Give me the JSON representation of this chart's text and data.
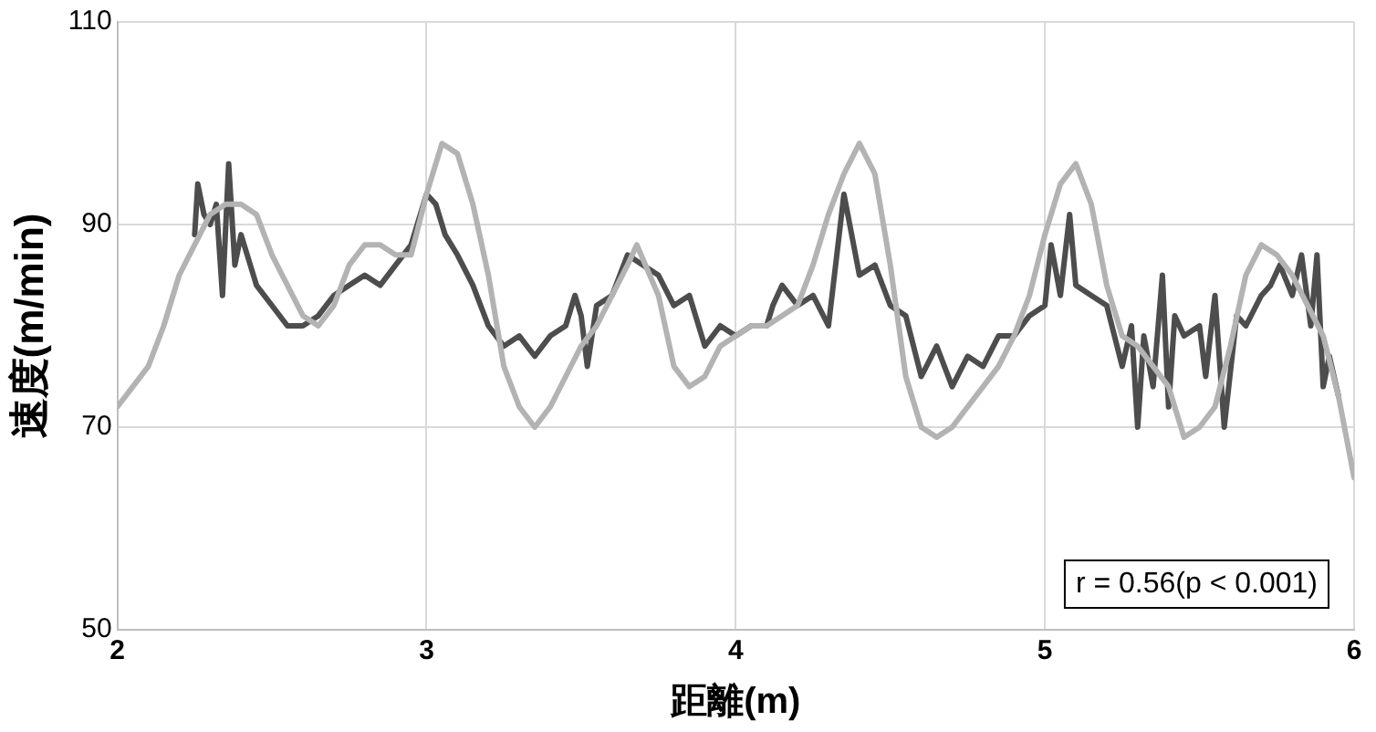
{
  "chart_data": {
    "type": "line",
    "xlabel": "距離(m)",
    "ylabel": "速度(m/min)",
    "xlim": [
      2,
      6
    ],
    "xticks": [
      2,
      3,
      4,
      5,
      6
    ],
    "ylim": [
      50,
      110
    ],
    "yticks": [
      50,
      70,
      90,
      110
    ],
    "grid": true,
    "marker": "none",
    "line_style": "solid",
    "annotations": [
      "r = 0.56(p < 0.001)"
    ],
    "series": [
      {
        "color": "#b3b3b3",
        "x": [
          2.0,
          2.05,
          2.1,
          2.15,
          2.2,
          2.25,
          2.3,
          2.35,
          2.4,
          2.45,
          2.5,
          2.55,
          2.6,
          2.65,
          2.7,
          2.75,
          2.8,
          2.85,
          2.9,
          2.95,
          3.0,
          3.05,
          3.1,
          3.15,
          3.2,
          3.25,
          3.3,
          3.35,
          3.4,
          3.45,
          3.5,
          3.55,
          3.6,
          3.65,
          3.68,
          3.75,
          3.8,
          3.85,
          3.9,
          3.95,
          4.0,
          4.05,
          4.1,
          4.15,
          4.2,
          4.25,
          4.3,
          4.35,
          4.4,
          4.45,
          4.5,
          4.55,
          4.6,
          4.65,
          4.7,
          4.75,
          4.8,
          4.85,
          4.9,
          4.95,
          5.0,
          5.05,
          5.1,
          5.15,
          5.2,
          5.25,
          5.3,
          5.35,
          5.4,
          5.45,
          5.5,
          5.55,
          5.6,
          5.65,
          5.7,
          5.75,
          5.8,
          5.85,
          5.9,
          5.95,
          6.0
        ],
        "values": [
          72,
          74,
          76,
          80,
          85,
          88,
          91,
          92,
          92,
          91,
          87,
          84,
          81,
          80,
          82,
          86,
          88,
          88,
          87,
          87,
          93,
          98,
          97,
          92,
          85,
          76,
          72,
          70,
          72,
          75,
          78,
          80,
          83,
          86,
          88,
          83,
          76,
          74,
          75,
          78,
          79,
          80,
          80,
          81,
          82,
          86,
          91,
          95,
          98,
          95,
          86,
          75,
          70,
          69,
          70,
          72,
          74,
          76,
          79,
          83,
          89,
          94,
          96,
          92,
          84,
          79,
          78,
          76,
          74,
          69,
          70,
          72,
          78,
          85,
          88,
          87,
          85,
          82,
          79,
          73,
          65
        ]
      },
      {
        "color": "#4d4d4d",
        "x": [
          2.25,
          2.26,
          2.28,
          2.3,
          2.32,
          2.34,
          2.36,
          2.38,
          2.4,
          2.42,
          2.45,
          2.5,
          2.55,
          2.6,
          2.65,
          2.7,
          2.75,
          2.8,
          2.85,
          2.9,
          2.95,
          3.0,
          3.03,
          3.06,
          3.1,
          3.15,
          3.2,
          3.25,
          3.3,
          3.35,
          3.4,
          3.45,
          3.48,
          3.5,
          3.52,
          3.55,
          3.6,
          3.65,
          3.7,
          3.75,
          3.8,
          3.85,
          3.9,
          3.95,
          4.0,
          4.05,
          4.1,
          4.12,
          4.15,
          4.2,
          4.25,
          4.3,
          4.35,
          4.4,
          4.45,
          4.5,
          4.55,
          4.6,
          4.65,
          4.7,
          4.75,
          4.8,
          4.85,
          4.9,
          4.95,
          5.0,
          5.02,
          5.05,
          5.08,
          5.1,
          5.15,
          5.2,
          5.25,
          5.28,
          5.3,
          5.32,
          5.35,
          5.38,
          5.4,
          5.42,
          5.45,
          5.5,
          5.52,
          5.55,
          5.58,
          5.62,
          5.65,
          5.7,
          5.73,
          5.76,
          5.8,
          5.83,
          5.86,
          5.88,
          5.9,
          5.92,
          5.95
        ],
        "values": [
          89,
          94,
          91,
          90,
          92,
          83,
          96,
          86,
          89,
          87,
          84,
          82,
          80,
          80,
          81,
          83,
          84,
          85,
          84,
          86,
          88,
          93,
          92,
          89,
          87,
          84,
          80,
          78,
          79,
          77,
          79,
          80,
          83,
          81,
          76,
          82,
          83,
          87,
          86,
          85,
          82,
          83,
          78,
          80,
          79,
          80,
          80,
          82,
          84,
          82,
          83,
          80,
          93,
          85,
          86,
          82,
          81,
          75,
          78,
          74,
          77,
          76,
          79,
          79,
          81,
          82,
          88,
          83,
          91,
          84,
          83,
          82,
          76,
          80,
          70,
          79,
          74,
          85,
          72,
          81,
          79,
          80,
          75,
          83,
          70,
          81,
          80,
          83,
          84,
          86,
          83,
          87,
          80,
          87,
          74,
          77,
          73
        ]
      }
    ]
  }
}
